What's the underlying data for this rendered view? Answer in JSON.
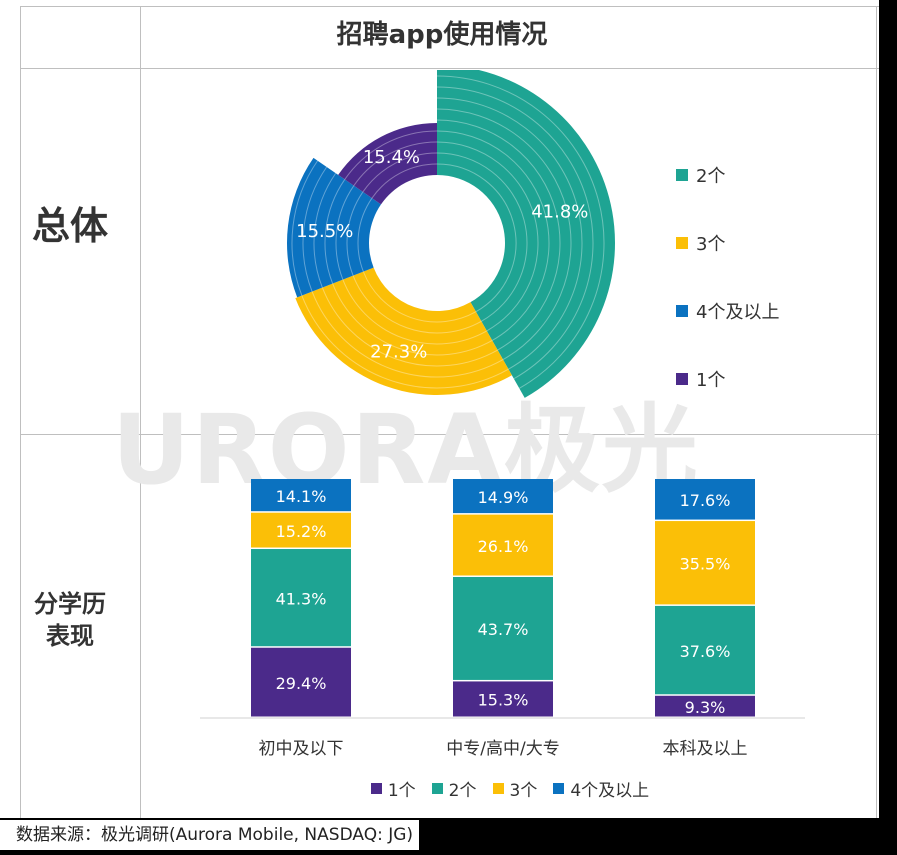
{
  "title": "招聘app使用情况",
  "watermark": "URORA极光",
  "row_labels": {
    "overall": "总体",
    "education": "分学历\n表现"
  },
  "source": "数据来源：极光调研(Aurora Mobile, NASDAQ: JG)",
  "colors": {
    "1个": "#4b2a8a",
    "2个": "#1ea493",
    "3个": "#fbbf07",
    "4个及以上": "#0b72c0"
  },
  "chart_data": [
    {
      "type": "pie",
      "title": "总体",
      "legend_position": "right",
      "slices": [
        {
          "label": "2个",
          "value": 41.8,
          "text": "41.8%"
        },
        {
          "label": "3个",
          "value": 27.3,
          "text": "27.3%"
        },
        {
          "label": "4个及以上",
          "value": 15.5,
          "text": "15.5%"
        },
        {
          "label": "1个",
          "value": 15.4,
          "text": "15.4%"
        }
      ],
      "legend": [
        "2个",
        "3个",
        "4个及以上",
        "1个"
      ]
    },
    {
      "type": "bar",
      "stacked": true,
      "title": "分学历表现",
      "legend_position": "bottom",
      "categories": [
        "初中及以下",
        "中专/高中/大专",
        "本科及以上"
      ],
      "series": [
        {
          "name": "1个",
          "values": [
            29.4,
            15.3,
            9.3
          ],
          "labels": [
            "29.4%",
            "15.3%",
            "9.3%"
          ]
        },
        {
          "name": "2个",
          "values": [
            41.3,
            43.7,
            37.6
          ],
          "labels": [
            "41.3%",
            "43.7%",
            "37.6%"
          ]
        },
        {
          "name": "3个",
          "values": [
            15.2,
            26.1,
            35.5
          ],
          "labels": [
            "15.2%",
            "26.1%",
            "35.5%"
          ]
        },
        {
          "name": "4个及以上",
          "values": [
            14.1,
            14.9,
            17.6
          ],
          "labels": [
            "14.1%",
            "14.9%",
            "17.6%"
          ]
        }
      ]
    }
  ]
}
